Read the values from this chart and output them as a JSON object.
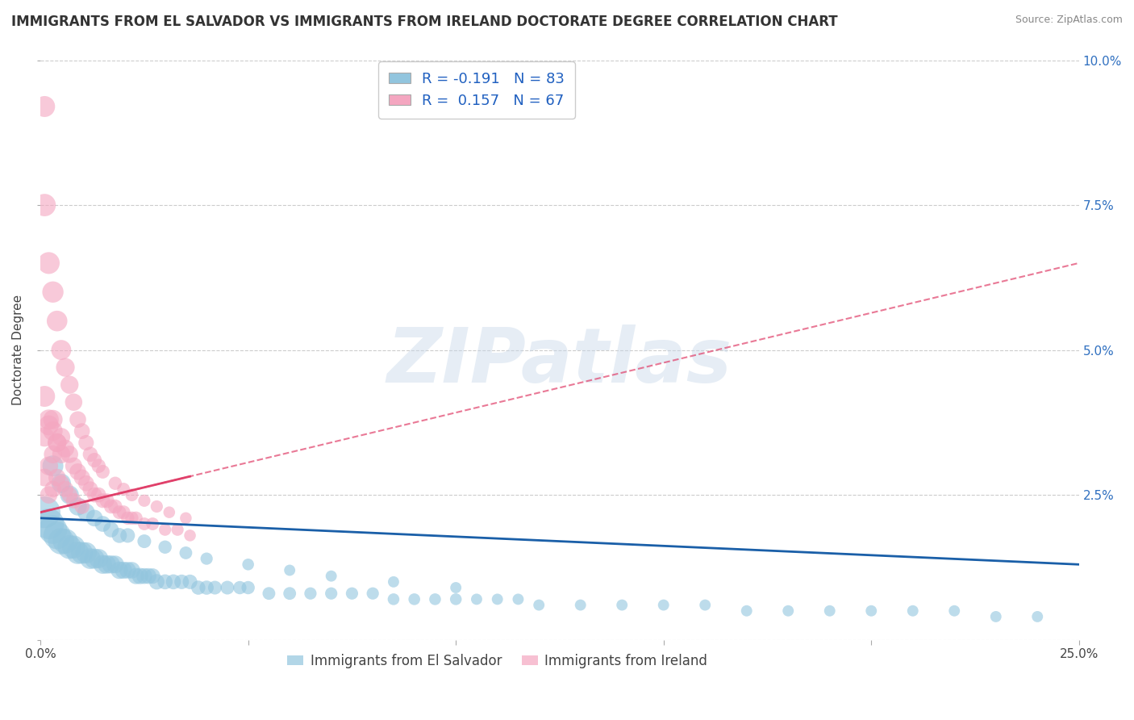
{
  "title": "IMMIGRANTS FROM EL SALVADOR VS IMMIGRANTS FROM IRELAND DOCTORATE DEGREE CORRELATION CHART",
  "source": "Source: ZipAtlas.com",
  "ylabel": "Doctorate Degree",
  "legend_labels": [
    "Immigrants from El Salvador",
    "Immigrants from Ireland"
  ],
  "legend_r": [
    -0.191,
    0.157
  ],
  "legend_n": [
    83,
    67
  ],
  "blue_color": "#92c5de",
  "pink_color": "#f4a6c0",
  "blue_line_color": "#1a5fa8",
  "pink_line_color": "#e0406a",
  "xlim": [
    0.0,
    0.25
  ],
  "ylim": [
    0.0,
    0.1
  ],
  "xticks": [
    0.0,
    0.05,
    0.1,
    0.15,
    0.2,
    0.25
  ],
  "yticks": [
    0.0,
    0.025,
    0.05,
    0.075,
    0.1
  ],
  "ytick_labels_right": [
    "",
    "2.5%",
    "5.0%",
    "7.5%",
    "10.0%"
  ],
  "blue_scatter_x": [
    0.001,
    0.002,
    0.003,
    0.004,
    0.005,
    0.006,
    0.007,
    0.008,
    0.009,
    0.01,
    0.011,
    0.012,
    0.013,
    0.014,
    0.015,
    0.016,
    0.017,
    0.018,
    0.019,
    0.02,
    0.021,
    0.022,
    0.023,
    0.024,
    0.025,
    0.026,
    0.027,
    0.028,
    0.03,
    0.032,
    0.034,
    0.036,
    0.038,
    0.04,
    0.042,
    0.045,
    0.048,
    0.05,
    0.055,
    0.06,
    0.065,
    0.07,
    0.075,
    0.08,
    0.085,
    0.09,
    0.095,
    0.1,
    0.105,
    0.11,
    0.115,
    0.12,
    0.13,
    0.14,
    0.15,
    0.16,
    0.17,
    0.18,
    0.19,
    0.2,
    0.21,
    0.22,
    0.23,
    0.24,
    0.003,
    0.005,
    0.007,
    0.009,
    0.011,
    0.013,
    0.015,
    0.017,
    0.019,
    0.021,
    0.025,
    0.03,
    0.035,
    0.04,
    0.05,
    0.06,
    0.07,
    0.085,
    0.1
  ],
  "blue_scatter_y": [
    0.022,
    0.02,
    0.019,
    0.018,
    0.017,
    0.017,
    0.016,
    0.016,
    0.015,
    0.015,
    0.015,
    0.014,
    0.014,
    0.014,
    0.013,
    0.013,
    0.013,
    0.013,
    0.012,
    0.012,
    0.012,
    0.012,
    0.011,
    0.011,
    0.011,
    0.011,
    0.011,
    0.01,
    0.01,
    0.01,
    0.01,
    0.01,
    0.009,
    0.009,
    0.009,
    0.009,
    0.009,
    0.009,
    0.008,
    0.008,
    0.008,
    0.008,
    0.008,
    0.008,
    0.007,
    0.007,
    0.007,
    0.007,
    0.007,
    0.007,
    0.007,
    0.006,
    0.006,
    0.006,
    0.006,
    0.006,
    0.005,
    0.005,
    0.005,
    0.005,
    0.005,
    0.005,
    0.004,
    0.004,
    0.03,
    0.027,
    0.025,
    0.023,
    0.022,
    0.021,
    0.02,
    0.019,
    0.018,
    0.018,
    0.017,
    0.016,
    0.015,
    0.014,
    0.013,
    0.012,
    0.011,
    0.01,
    0.009
  ],
  "blue_scatter_size": [
    80,
    75,
    65,
    60,
    55,
    50,
    45,
    42,
    40,
    38,
    36,
    34,
    32,
    30,
    28,
    27,
    26,
    25,
    24,
    23,
    22,
    22,
    21,
    21,
    20,
    20,
    19,
    19,
    18,
    18,
    17,
    17,
    16,
    16,
    15,
    15,
    14,
    14,
    13,
    13,
    12,
    12,
    12,
    12,
    11,
    11,
    11,
    11,
    10,
    10,
    10,
    10,
    10,
    10,
    10,
    10,
    10,
    10,
    10,
    10,
    10,
    10,
    10,
    10,
    35,
    30,
    28,
    26,
    24,
    22,
    20,
    19,
    18,
    17,
    15,
    14,
    13,
    12,
    11,
    10,
    10,
    10,
    10
  ],
  "pink_scatter_x": [
    0.001,
    0.001,
    0.001,
    0.002,
    0.002,
    0.002,
    0.003,
    0.003,
    0.003,
    0.004,
    0.004,
    0.005,
    0.005,
    0.006,
    0.006,
    0.007,
    0.007,
    0.008,
    0.008,
    0.009,
    0.01,
    0.01,
    0.011,
    0.012,
    0.013,
    0.014,
    0.015,
    0.016,
    0.017,
    0.018,
    0.019,
    0.02,
    0.021,
    0.022,
    0.023,
    0.025,
    0.027,
    0.03,
    0.033,
    0.036,
    0.001,
    0.001,
    0.002,
    0.002,
    0.003,
    0.003,
    0.004,
    0.004,
    0.005,
    0.005,
    0.006,
    0.007,
    0.008,
    0.009,
    0.01,
    0.011,
    0.012,
    0.013,
    0.014,
    0.015,
    0.018,
    0.02,
    0.022,
    0.025,
    0.028,
    0.031,
    0.035
  ],
  "pink_scatter_y": [
    0.092,
    0.035,
    0.028,
    0.037,
    0.03,
    0.025,
    0.038,
    0.032,
    0.026,
    0.034,
    0.028,
    0.035,
    0.027,
    0.033,
    0.026,
    0.032,
    0.025,
    0.03,
    0.024,
    0.029,
    0.028,
    0.023,
    0.027,
    0.026,
    0.025,
    0.025,
    0.024,
    0.024,
    0.023,
    0.023,
    0.022,
    0.022,
    0.021,
    0.021,
    0.021,
    0.02,
    0.02,
    0.019,
    0.019,
    0.018,
    0.075,
    0.042,
    0.065,
    0.038,
    0.06,
    0.036,
    0.055,
    0.034,
    0.05,
    0.032,
    0.047,
    0.044,
    0.041,
    0.038,
    0.036,
    0.034,
    0.032,
    0.031,
    0.03,
    0.029,
    0.027,
    0.026,
    0.025,
    0.024,
    0.023,
    0.022,
    0.021
  ],
  "pink_scatter_size": [
    35,
    30,
    25,
    32,
    28,
    24,
    30,
    26,
    22,
    28,
    24,
    26,
    22,
    25,
    21,
    24,
    20,
    23,
    19,
    22,
    21,
    18,
    20,
    19,
    18,
    18,
    17,
    17,
    16,
    16,
    15,
    15,
    14,
    14,
    14,
    13,
    13,
    12,
    12,
    11,
    40,
    35,
    38,
    32,
    36,
    30,
    34,
    28,
    32,
    26,
    28,
    26,
    24,
    22,
    20,
    19,
    18,
    17,
    16,
    15,
    14,
    13,
    13,
    12,
    12,
    11,
    11
  ],
  "blue_trend": [
    0.0,
    0.25,
    0.021,
    0.013
  ],
  "pink_trend": [
    0.0,
    0.25,
    0.022,
    0.065
  ],
  "background_color": "#ffffff",
  "grid_color": "#cccccc",
  "watermark_text": "ZIPatlas",
  "watermark_color": "#c8d8ea",
  "watermark_alpha": 0.45,
  "title_fontsize": 12,
  "source_fontsize": 9,
  "legend_fontsize": 13,
  "axis_label_fontsize": 11,
  "tick_fontsize": 11
}
